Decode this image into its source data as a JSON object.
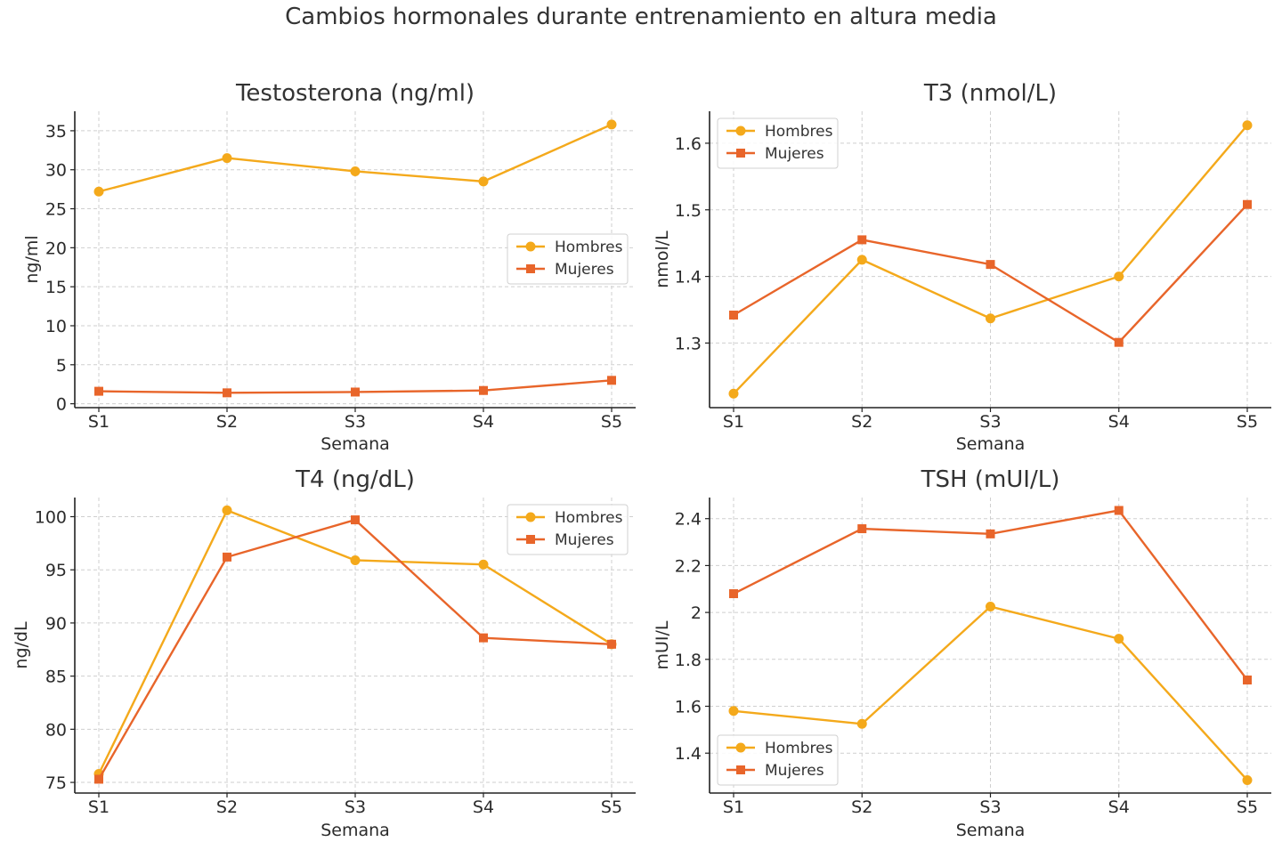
{
  "figure": {
    "suptitle": "Cambios hormonales durante entrenamiento en altura media",
    "colors": {
      "hombres": "#F4A91B",
      "mujeres": "#E8652A"
    },
    "markers": {
      "hombres": "circle",
      "mujeres": "square"
    }
  },
  "chart_data": [
    {
      "type": "line",
      "title": "Testosterona (ng/ml)",
      "xlabel": "Semana",
      "ylabel": "ng/ml",
      "categories": [
        "S1",
        "S2",
        "S3",
        "S4",
        "S5"
      ],
      "ylim": [
        -0.5,
        37.5
      ],
      "yticks": [
        0,
        5,
        10,
        15,
        20,
        25,
        30,
        35
      ],
      "grid": true,
      "legend": "center-right",
      "series": [
        {
          "name": "Hombres",
          "values": [
            27.2,
            31.5,
            29.8,
            28.5,
            35.8
          ]
        },
        {
          "name": "Mujeres",
          "values": [
            1.6,
            1.4,
            1.5,
            1.7,
            3.0
          ]
        }
      ]
    },
    {
      "type": "line",
      "title": "T3 (nmol/L)",
      "xlabel": "Semana",
      "ylabel": "nmol/L",
      "categories": [
        "S1",
        "S2",
        "S3",
        "S4",
        "S5"
      ],
      "ylim": [
        1.203,
        1.648
      ],
      "yticks": [
        1.3,
        1.4,
        1.5,
        1.6
      ],
      "grid": true,
      "legend": "top-left",
      "series": [
        {
          "name": "Hombres",
          "values": [
            1.224,
            1.425,
            1.337,
            1.4,
            1.627
          ]
        },
        {
          "name": "Mujeres",
          "values": [
            1.342,
            1.455,
            1.418,
            1.301,
            1.508
          ]
        }
      ]
    },
    {
      "type": "line",
      "title": "T4 (ng/dL)",
      "xlabel": "Semana",
      "ylabel": "ng/dL",
      "categories": [
        "S1",
        "S2",
        "S3",
        "S4",
        "S5"
      ],
      "ylim": [
        74.0,
        101.8
      ],
      "yticks": [
        75,
        80,
        85,
        90,
        95,
        100
      ],
      "grid": true,
      "legend": "top-right",
      "series": [
        {
          "name": "Hombres",
          "values": [
            75.8,
            100.6,
            95.9,
            95.5,
            88.0
          ]
        },
        {
          "name": "Mujeres",
          "values": [
            75.3,
            96.2,
            99.7,
            88.6,
            88.0
          ]
        }
      ]
    },
    {
      "type": "line",
      "title": "TSH (mUI/L)",
      "xlabel": "Semana",
      "ylabel": "mUI/L",
      "categories": [
        "S1",
        "S2",
        "S3",
        "S4",
        "S5"
      ],
      "ylim": [
        1.23,
        2.49
      ],
      "yticks": [
        1.4,
        1.6,
        1.8,
        2.0,
        2.2,
        2.4
      ],
      "grid": true,
      "legend": "bottom-left",
      "series": [
        {
          "name": "Hombres",
          "values": [
            1.58,
            1.525,
            2.025,
            1.888,
            1.285
          ]
        },
        {
          "name": "Mujeres",
          "values": [
            2.08,
            2.357,
            2.335,
            2.435,
            1.712
          ]
        }
      ]
    }
  ]
}
